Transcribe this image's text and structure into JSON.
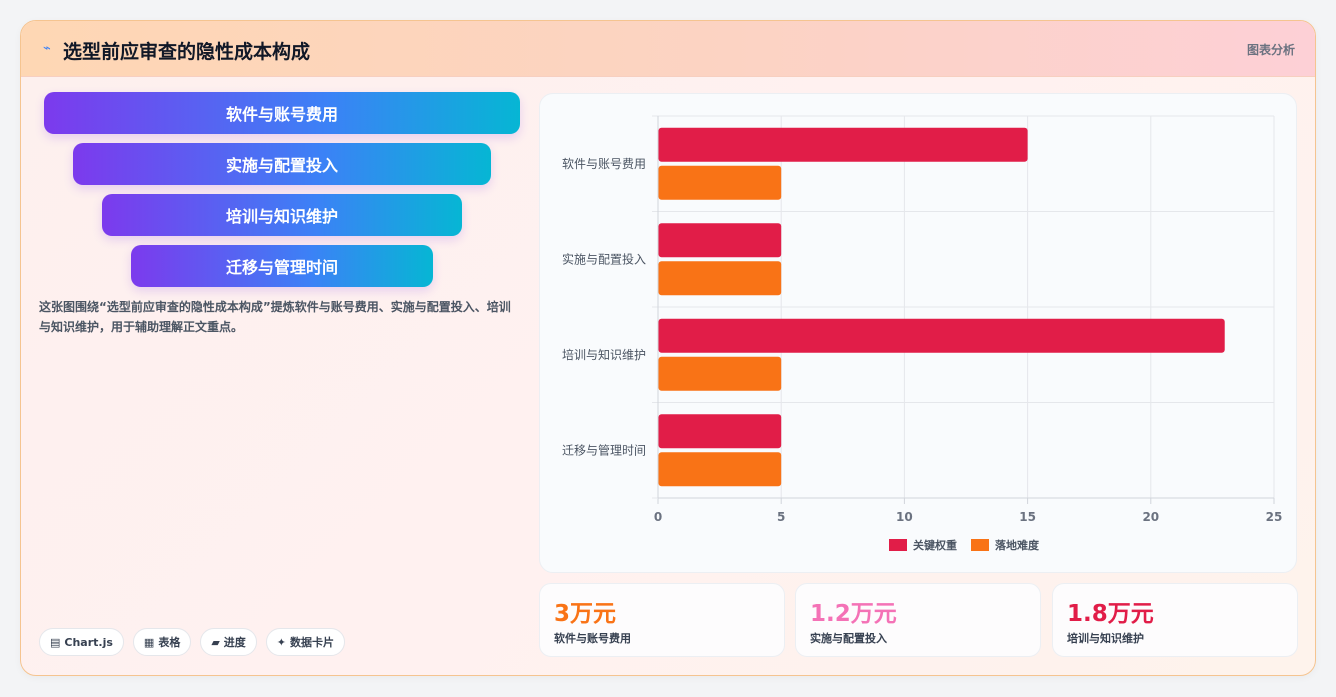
{
  "header": {
    "title": "选型前应审查的隐性成本构成",
    "tag": "图表分析"
  },
  "funnel": [
    "软件与账号费用",
    "实施与配置投入",
    "培训与知识维护",
    "迁移与管理时间"
  ],
  "description": "这张图围绕“选型前应审查的隐性成本构成”提炼软件与账号费用、实施与配置投入、培训与知识维护，用于辅助理解正文重点。",
  "chips": [
    {
      "icon": "▤",
      "icon_name": "chart-icon",
      "label": "Chart.js"
    },
    {
      "icon": "▦",
      "icon_name": "table-icon",
      "label": "表格"
    },
    {
      "icon": "▰",
      "icon_name": "progress-icon",
      "label": "进度"
    },
    {
      "icon": "✦",
      "icon_name": "sparkle-icon",
      "label": "数据卡片"
    }
  ],
  "chart_data": {
    "type": "bar",
    "orientation": "horizontal",
    "categories": [
      "软件与账号费用",
      "实施与配置投入",
      "培训与知识维护",
      "迁移与管理时间"
    ],
    "series": [
      {
        "name": "关键权重",
        "color": "#e11d48",
        "values": [
          15,
          5,
          23,
          5
        ]
      },
      {
        "name": "落地难度",
        "color": "#f97316",
        "values": [
          5,
          5,
          5,
          5
        ]
      }
    ],
    "xlim": [
      0,
      25
    ],
    "xticks": [
      0,
      5,
      10,
      15,
      20,
      25
    ],
    "grid": true,
    "legend": "bottom"
  },
  "stats": [
    {
      "value": "3万元",
      "label": "软件与账号费用",
      "color": "#f97316"
    },
    {
      "value": "1.2万元",
      "label": "实施与配置投入",
      "color": "#f472b6"
    },
    {
      "value": "1.8万元",
      "label": "培训与知识维护",
      "color": "#e11d48"
    }
  ]
}
